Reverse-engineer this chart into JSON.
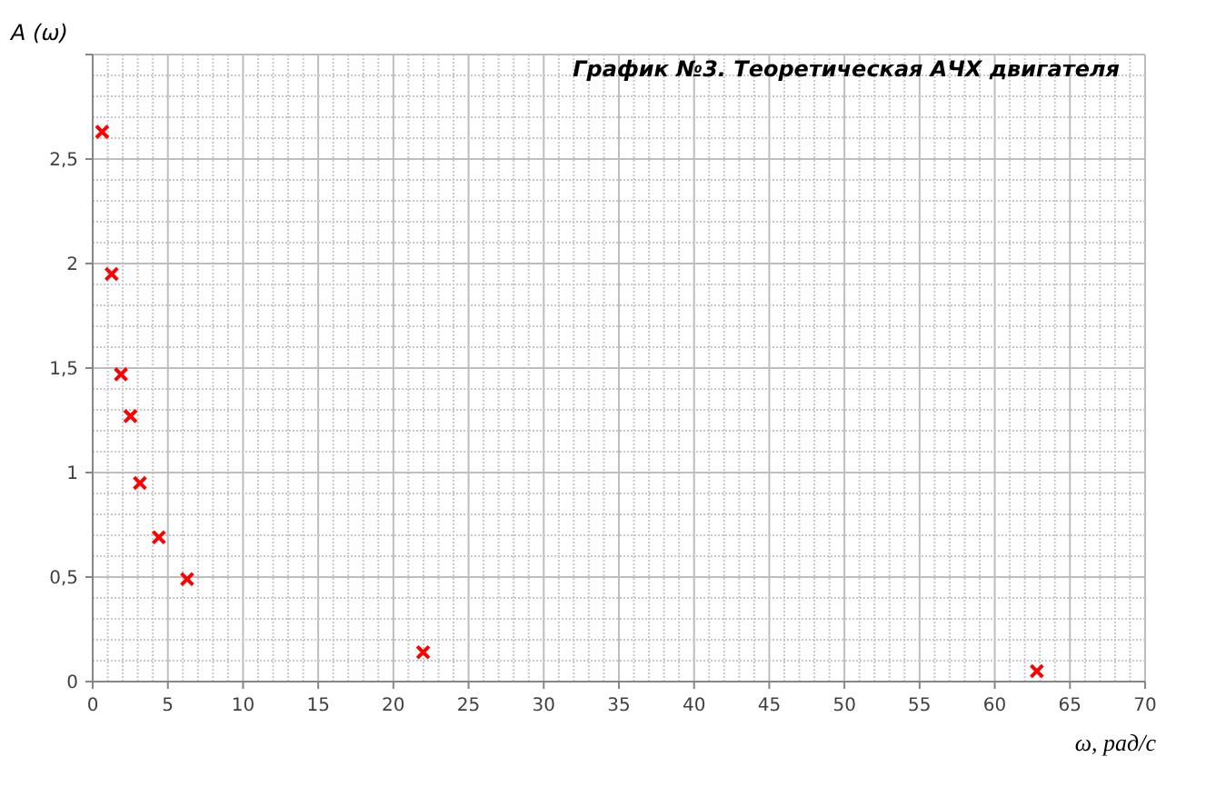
{
  "chart_data": {
    "type": "scatter",
    "title": "График №3. Теоретическая АЧХ двигателя",
    "xlabel": "ω, рад/с",
    "ylabel": "A (ω)",
    "x": [
      0.63,
      1.26,
      1.88,
      2.51,
      3.14,
      4.4,
      6.28,
      21.98,
      62.8
    ],
    "series": [
      {
        "color": "#ff0000",
        "values": [
          2.63,
          1.95,
          1.47,
          1.27,
          0.95,
          0.69,
          0.49,
          0.14,
          0.05
        ]
      }
    ],
    "xlim": [
      0,
      70
    ],
    "xticks": [
      0,
      5,
      10,
      15,
      20,
      25,
      30,
      35,
      40,
      45,
      50,
      55,
      60,
      65,
      70
    ],
    "ylim": [
      0,
      3
    ],
    "yticks": [
      {
        "value": 0,
        "label": "0"
      },
      {
        "value": 0.5,
        "label": "0,5"
      },
      {
        "value": 1,
        "label": "1"
      },
      {
        "value": 1.5,
        "label": "1,5"
      },
      {
        "value": 2,
        "label": "2"
      },
      {
        "value": 2.5,
        "label": "2,5"
      },
      {
        "value": 3,
        "label": null
      }
    ],
    "grid": true,
    "marker": "cross"
  }
}
